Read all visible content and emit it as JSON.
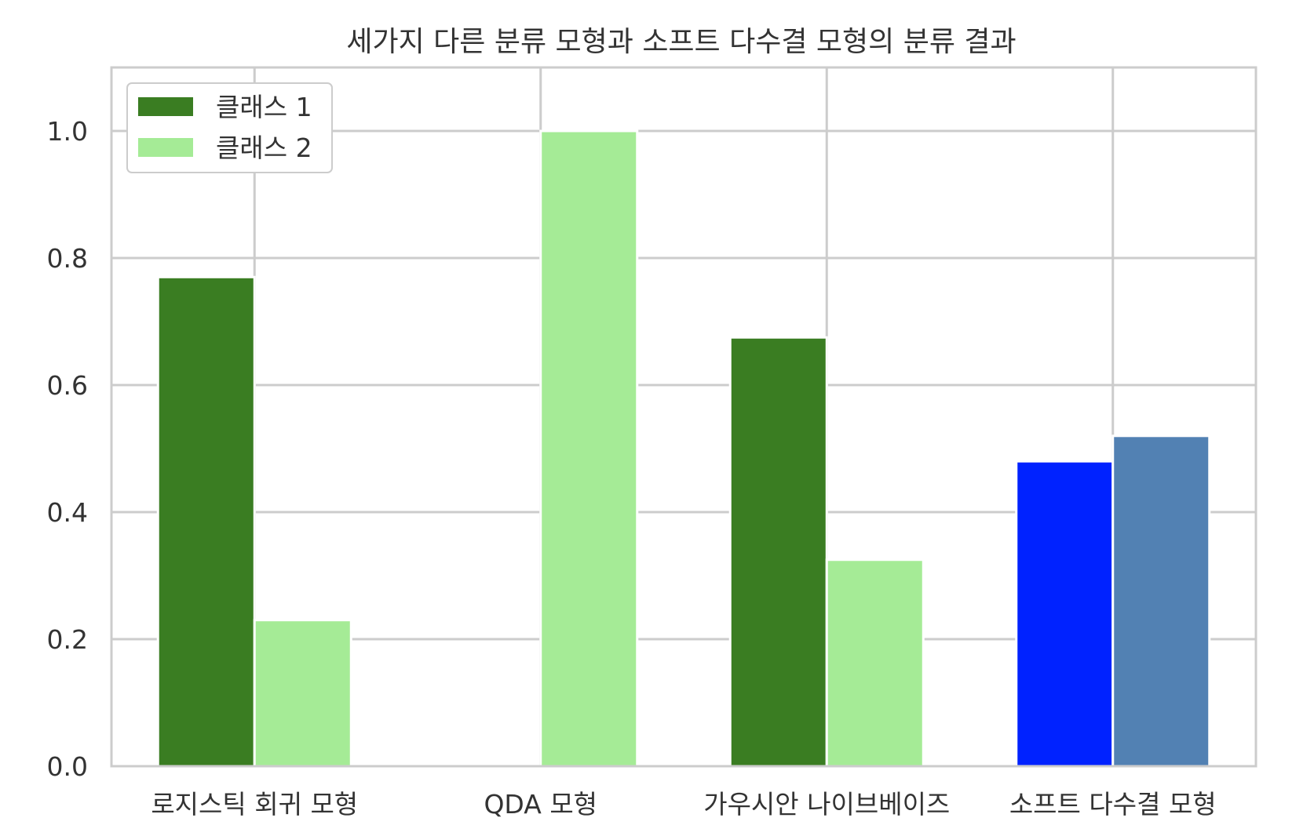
{
  "chart_data": {
    "type": "bar",
    "title": "세가지 다른 분류 모형과 소프트 다수결 모형의 분류 결과",
    "categories": [
      "로지스틱 회귀 모형",
      "QDA 모형",
      "가우시안 나이브베이즈",
      "소프트 다수결 모형"
    ],
    "series": [
      {
        "name": "클래스 1",
        "values": [
          0.77,
          0.0,
          0.675,
          0.48
        ],
        "color": "#3a7d22",
        "bar_colors": [
          "#3a7d22",
          "#3a7d22",
          "#3a7d22",
          "#0022ff"
        ]
      },
      {
        "name": "클래스 2",
        "values": [
          0.23,
          1.0,
          0.325,
          0.52
        ],
        "color": "#a5eb96",
        "bar_colors": [
          "#a5eb96",
          "#a5eb96",
          "#a5eb96",
          "#5281b3"
        ]
      }
    ],
    "yticks": [
      0.0,
      0.2,
      0.4,
      0.6,
      0.8,
      1.0
    ],
    "ytick_labels": [
      "0.0",
      "0.2",
      "0.4",
      "0.6",
      "0.8",
      "1.0"
    ],
    "ylim": [
      0,
      1.1
    ],
    "xlabel": "",
    "ylabel": "",
    "grid": true,
    "legend_position": "top-left"
  }
}
